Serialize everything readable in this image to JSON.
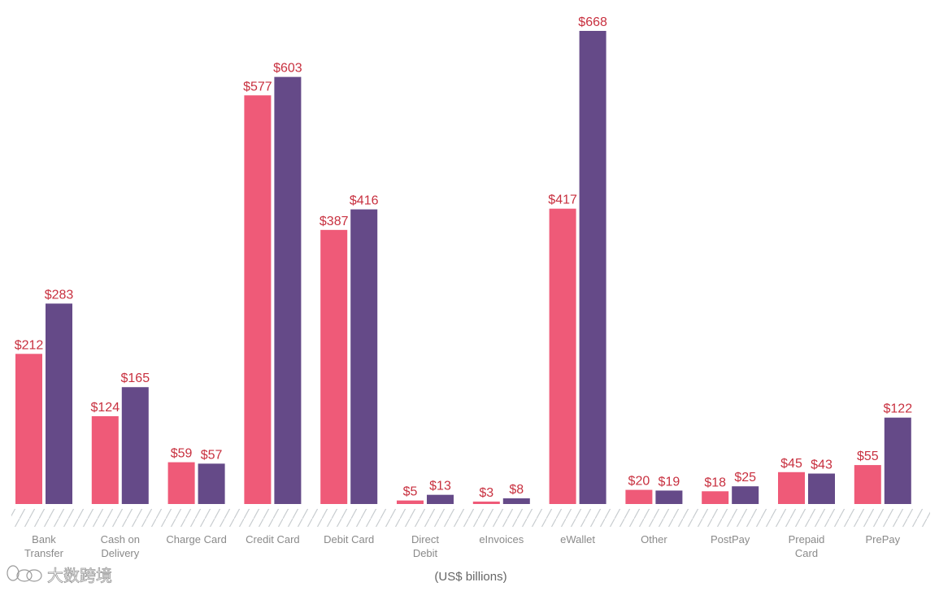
{
  "chart_data": {
    "type": "bar",
    "categories": [
      [
        "Bank",
        "Transfer"
      ],
      [
        "Cash on",
        "Delivery"
      ],
      [
        "Charge Card"
      ],
      [
        "Credit Card"
      ],
      [
        "Debit Card"
      ],
      [
        "Direct",
        "Debit"
      ],
      [
        "eInvoices"
      ],
      [
        "eWallet"
      ],
      [
        "Other"
      ],
      [
        "PostPay"
      ],
      [
        "Prepaid",
        "Card"
      ],
      [
        "PrePay"
      ]
    ],
    "series": [
      {
        "values": [
          212,
          124,
          59,
          577,
          387,
          5,
          3,
          417,
          20,
          18,
          45,
          55
        ],
        "labels": [
          "$212",
          "$124",
          "$59",
          "$577",
          "$387",
          "$5",
          "$3",
          "$417",
          "$20",
          "$18",
          "$45",
          "$55"
        ],
        "color": "#ef5a78"
      },
      {
        "values": [
          283,
          165,
          57,
          603,
          416,
          13,
          8,
          668,
          19,
          25,
          43,
          122
        ],
        "labels": [
          "$283",
          "$165",
          "$57",
          "$603",
          "$416",
          "$13",
          "$8",
          "$668",
          "$19",
          "$25",
          "$43",
          "$122"
        ],
        "color": "#654a88"
      }
    ],
    "xlabel": "(US$ billions)",
    "ylim": [
      0,
      700
    ],
    "grid": false,
    "legend": "none",
    "value_label_color": "#c8303f",
    "axis_band": "hatched"
  },
  "watermark": {
    "text": "大数跨境",
    "icon": "rabbit-logo-icon"
  }
}
